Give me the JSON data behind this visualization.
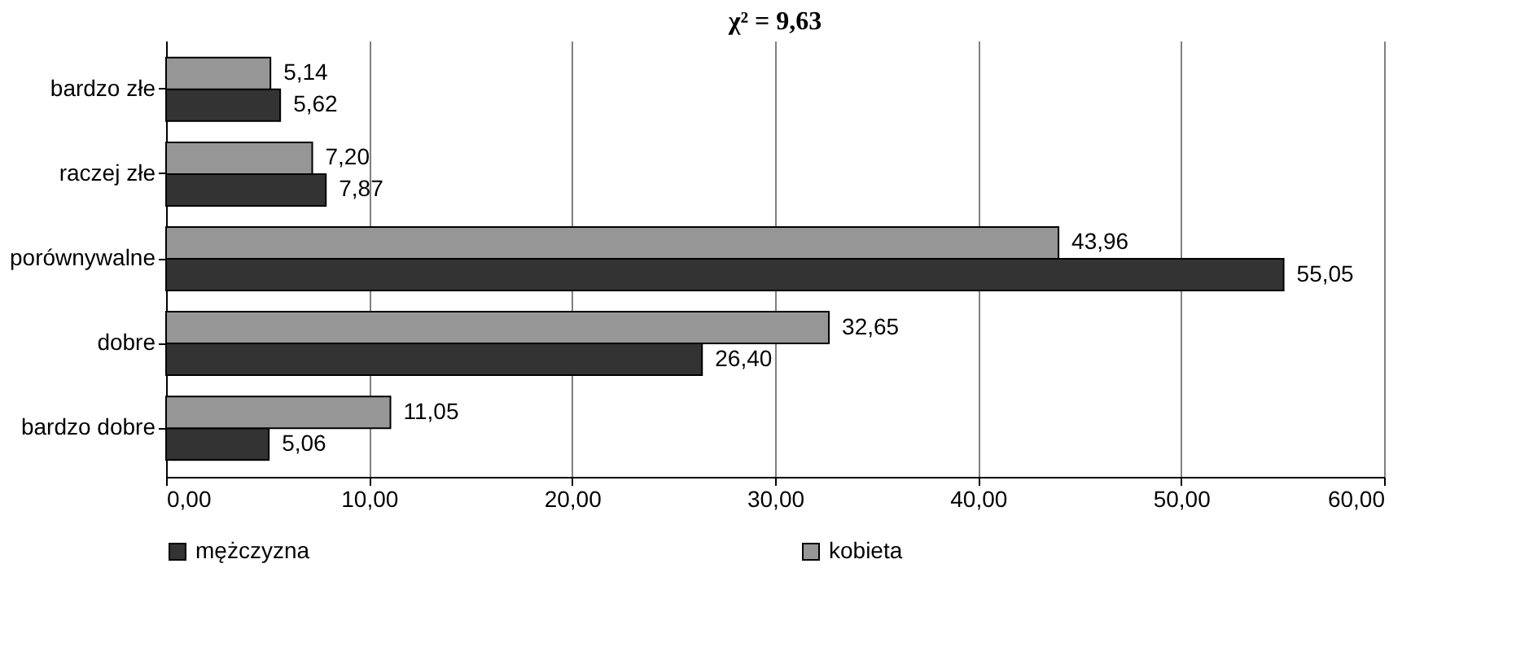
{
  "chart_data": {
    "type": "bar",
    "orientation": "horizontal",
    "title": "χ² = 9,63",
    "categories": [
      "bardzo złe",
      "raczej złe",
      "porównywalne",
      "dobre",
      "bardzo dobre"
    ],
    "series": [
      {
        "name": "mężczyzna",
        "color": "#333333",
        "values": [
          5.62,
          7.87,
          55.05,
          26.4,
          5.06
        ],
        "value_labels": [
          "5,62",
          "7,87",
          "55,05",
          "26,40",
          "5,06"
        ]
      },
      {
        "name": "kobieta",
        "color": "#969696",
        "values": [
          5.14,
          7.2,
          43.96,
          32.65,
          11.05
        ],
        "value_labels": [
          "5,14",
          "7,20",
          "43,96",
          "32,65",
          "11,05"
        ]
      }
    ],
    "xlim": [
      0,
      60
    ],
    "xticks": [
      {
        "value": 0,
        "label": "0,00"
      },
      {
        "value": 10,
        "label": "10,00"
      },
      {
        "value": 20,
        "label": "20,00"
      },
      {
        "value": 30,
        "label": "30,00"
      },
      {
        "value": 40,
        "label": "40,00"
      },
      {
        "value": 50,
        "label": "50,00"
      },
      {
        "value": 60,
        "label": "60,00"
      }
    ],
    "grid": "x",
    "legend": "bottom"
  }
}
